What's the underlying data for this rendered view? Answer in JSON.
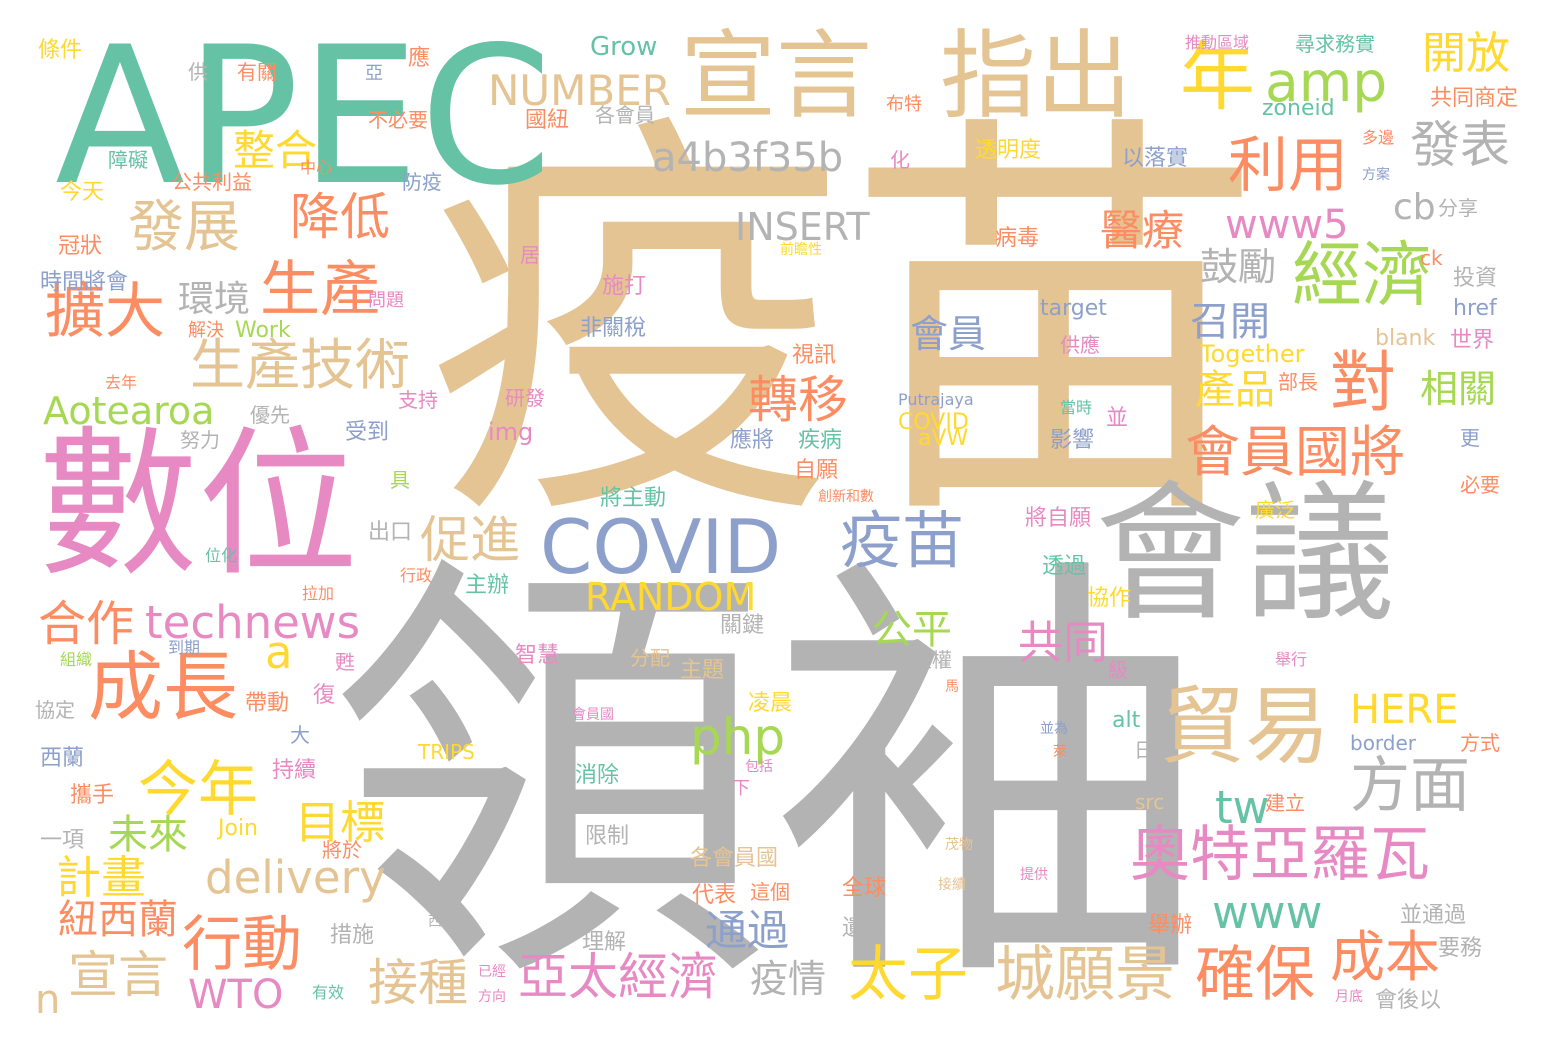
{
  "palette": {
    "gray": "#b3b3b3",
    "tan": "#e5c494",
    "green": "#66c2a5",
    "pink": "#e78ac3",
    "orange": "#fc8d62",
    "yellow": "#ffd92f",
    "blue": "#8da0cb",
    "lime": "#a6d854"
  },
  "words": [
    {
      "text": "疫苗",
      "color": "tan"
    },
    {
      "text": "領袖",
      "color": "gray"
    },
    {
      "text": "APEC",
      "color": "green"
    },
    {
      "text": "數位",
      "color": "pink"
    },
    {
      "text": "會議",
      "color": "gray"
    },
    {
      "text": "宣言",
      "color": "tan"
    },
    {
      "text": "指出",
      "color": "tan"
    },
    {
      "text": "年",
      "color": "yellow"
    },
    {
      "text": "amp",
      "color": "lime"
    },
    {
      "text": "開放",
      "color": "yellow"
    },
    {
      "text": "NUMBER",
      "color": "tan"
    },
    {
      "text": "a4b3f35b",
      "color": "gray"
    },
    {
      "text": "利用",
      "color": "orange"
    },
    {
      "text": "發表",
      "color": "gray"
    },
    {
      "text": "整合",
      "color": "yellow"
    },
    {
      "text": "發展",
      "color": "tan"
    },
    {
      "text": "降低",
      "color": "orange"
    },
    {
      "text": "INSERT",
      "color": "gray"
    },
    {
      "text": "cb",
      "color": "gray"
    },
    {
      "text": "經濟",
      "color": "lime"
    },
    {
      "text": "www5",
      "color": "pink"
    },
    {
      "text": "醫療",
      "color": "orange"
    },
    {
      "text": "擴大",
      "color": "orange"
    },
    {
      "text": "生產",
      "color": "orange"
    },
    {
      "text": "環境",
      "color": "gray"
    },
    {
      "text": "鼓勵",
      "color": "gray"
    },
    {
      "text": "會員",
      "color": "blue"
    },
    {
      "text": "target",
      "color": "blue"
    },
    {
      "text": "生產技術",
      "color": "tan"
    },
    {
      "text": "召開",
      "color": "blue"
    },
    {
      "text": "對",
      "color": "orange"
    },
    {
      "text": "相關",
      "color": "lime"
    },
    {
      "text": "轉移",
      "color": "orange"
    },
    {
      "text": "產品",
      "color": "yellow"
    },
    {
      "text": "Aotearoa",
      "color": "lime"
    },
    {
      "text": "會員國將",
      "color": "orange"
    },
    {
      "text": "COVID",
      "color": "blue"
    },
    {
      "text": "疫苗",
      "color": "blue"
    },
    {
      "text": "促進",
      "color": "tan"
    },
    {
      "text": "RANDOM",
      "color": "yellow"
    },
    {
      "text": "合作",
      "color": "orange"
    },
    {
      "text": "technews",
      "color": "pink"
    },
    {
      "text": "成長",
      "color": "orange"
    },
    {
      "text": "公平",
      "color": "lime"
    },
    {
      "text": "共同",
      "color": "pink"
    },
    {
      "text": "貿易",
      "color": "tan"
    },
    {
      "text": "今年",
      "color": "yellow"
    },
    {
      "text": "php",
      "color": "lime"
    },
    {
      "text": "HERE",
      "color": "yellow"
    },
    {
      "text": "方面",
      "color": "gray"
    },
    {
      "text": "tw",
      "color": "green"
    },
    {
      "text": "未來",
      "color": "lime"
    },
    {
      "text": "目標",
      "color": "yellow"
    },
    {
      "text": "奧特亞羅瓦",
      "color": "pink"
    },
    {
      "text": "delivery",
      "color": "tan"
    },
    {
      "text": "計畫",
      "color": "yellow"
    },
    {
      "text": "www",
      "color": "green"
    },
    {
      "text": "行動",
      "color": "orange"
    },
    {
      "text": "宣言",
      "color": "tan"
    },
    {
      "text": "WTO",
      "color": "pink"
    },
    {
      "text": "接種",
      "color": "tan"
    },
    {
      "text": "亞太經濟",
      "color": "pink"
    },
    {
      "text": "太子",
      "color": "yellow"
    },
    {
      "text": "城願景",
      "color": "tan"
    },
    {
      "text": "確保",
      "color": "orange"
    },
    {
      "text": "成本",
      "color": "orange"
    },
    {
      "text": "疫情",
      "color": "gray"
    },
    {
      "text": "通過",
      "color": "blue"
    },
    {
      "text": "紐西蘭",
      "color": "orange"
    },
    {
      "text": "n",
      "color": "tan"
    },
    {
      "text": "a",
      "color": "yellow"
    },
    {
      "text": "Grow",
      "color": "green"
    },
    {
      "text": "條件",
      "color": "yellow"
    },
    {
      "text": "供",
      "color": "gray"
    },
    {
      "text": "有關",
      "color": "orange"
    },
    {
      "text": "亞",
      "color": "blue"
    },
    {
      "text": "應",
      "color": "orange"
    },
    {
      "text": "國紐",
      "color": "orange"
    },
    {
      "text": "各會員",
      "color": "gray"
    },
    {
      "text": "推動區域",
      "color": "pink"
    },
    {
      "text": "尋求務實",
      "color": "green"
    },
    {
      "text": "共同商定",
      "color": "orange"
    },
    {
      "text": "zoneid",
      "color": "green"
    },
    {
      "text": "布特",
      "color": "orange"
    },
    {
      "text": "不必要",
      "color": "orange"
    },
    {
      "text": "障礙",
      "color": "green"
    },
    {
      "text": "中心",
      "color": "orange"
    },
    {
      "text": "化",
      "color": "pink"
    },
    {
      "text": "透明度",
      "color": "yellow"
    },
    {
      "text": "以落實",
      "color": "blue"
    },
    {
      "text": "多邊",
      "color": "orange"
    },
    {
      "text": "方案",
      "color": "blue"
    },
    {
      "text": "今天",
      "color": "yellow"
    },
    {
      "text": "公共利益",
      "color": "orange"
    },
    {
      "text": "防疫",
      "color": "blue"
    },
    {
      "text": "分享",
      "color": "gray"
    },
    {
      "text": "冠狀",
      "color": "orange"
    },
    {
      "text": "ck",
      "color": "orange"
    },
    {
      "text": "病毒",
      "color": "orange"
    },
    {
      "text": "居",
      "color": "pink"
    },
    {
      "text": "前瞻性",
      "color": "yellow"
    },
    {
      "text": "時間將會",
      "color": "blue"
    },
    {
      "text": "問題",
      "color": "pink"
    },
    {
      "text": "施打",
      "color": "pink"
    },
    {
      "text": "投資",
      "color": "gray"
    },
    {
      "text": "href",
      "color": "blue"
    },
    {
      "text": "解決",
      "color": "orange"
    },
    {
      "text": "Work",
      "color": "lime"
    },
    {
      "text": "非關稅",
      "color": "blue"
    },
    {
      "text": "供應",
      "color": "pink"
    },
    {
      "text": "blank",
      "color": "tan"
    },
    {
      "text": "世界",
      "color": "pink"
    },
    {
      "text": "Together",
      "color": "yellow"
    },
    {
      "text": "部長",
      "color": "orange"
    },
    {
      "text": "去年",
      "color": "orange"
    },
    {
      "text": "視訊",
      "color": "orange"
    },
    {
      "text": "支持",
      "color": "pink"
    },
    {
      "text": "研發",
      "color": "pink"
    },
    {
      "text": "Putrajaya",
      "color": "blue"
    },
    {
      "text": "當時",
      "color": "green"
    },
    {
      "text": "優先",
      "color": "gray"
    },
    {
      "text": "受到",
      "color": "blue"
    },
    {
      "text": "img",
      "color": "pink"
    },
    {
      "text": "COVID",
      "color": "yellow"
    },
    {
      "text": "aVW",
      "color": "yellow"
    },
    {
      "text": "並",
      "color": "pink"
    },
    {
      "text": "努力",
      "color": "gray"
    },
    {
      "text": "應將",
      "color": "blue"
    },
    {
      "text": "疾病",
      "color": "green"
    },
    {
      "text": "影響",
      "color": "blue"
    },
    {
      "text": "更",
      "color": "blue"
    },
    {
      "text": "具",
      "color": "lime"
    },
    {
      "text": "自願",
      "color": "orange"
    },
    {
      "text": "必要",
      "color": "orange"
    },
    {
      "text": "將主動",
      "color": "green"
    },
    {
      "text": "創新和數",
      "color": "orange"
    },
    {
      "text": "出口",
      "color": "gray"
    },
    {
      "text": "將自願",
      "color": "pink"
    },
    {
      "text": "廣泛",
      "color": "yellow"
    },
    {
      "text": "位化",
      "color": "green"
    },
    {
      "text": "行政",
      "color": "orange"
    },
    {
      "text": "主辦",
      "color": "green"
    },
    {
      "text": "透過",
      "color": "green"
    },
    {
      "text": "拉加",
      "color": "orange"
    },
    {
      "text": "協作",
      "color": "yellow"
    },
    {
      "text": "到期",
      "color": "blue"
    },
    {
      "text": "關鍵",
      "color": "gray"
    },
    {
      "text": "組織",
      "color": "lime"
    },
    {
      "text": "甦",
      "color": "pink"
    },
    {
      "text": "智慧",
      "color": "pink"
    },
    {
      "text": "分配",
      "color": "tan"
    },
    {
      "text": "主題",
      "color": "tan"
    },
    {
      "text": "財產權",
      "color": "gray"
    },
    {
      "text": "級",
      "color": "pink"
    },
    {
      "text": "舉行",
      "color": "pink"
    },
    {
      "text": "協定",
      "color": "gray"
    },
    {
      "text": "帶動",
      "color": "orange"
    },
    {
      "text": "復",
      "color": "pink"
    },
    {
      "text": "會員國",
      "color": "pink"
    },
    {
      "text": "凌晨",
      "color": "yellow"
    },
    {
      "text": "馬",
      "color": "orange"
    },
    {
      "text": "alt",
      "color": "green"
    },
    {
      "text": "並為",
      "color": "blue"
    },
    {
      "text": "大",
      "color": "blue"
    },
    {
      "text": "西蘭",
      "color": "blue"
    },
    {
      "text": "TRIPS",
      "color": "yellow"
    },
    {
      "text": "萊",
      "color": "orange"
    },
    {
      "text": "border",
      "color": "blue"
    },
    {
      "text": "方式",
      "color": "orange"
    },
    {
      "text": "日",
      "color": "gray"
    },
    {
      "text": "持續",
      "color": "pink"
    },
    {
      "text": "消除",
      "color": "green"
    },
    {
      "text": "包括",
      "color": "pink"
    },
    {
      "text": "攜手",
      "color": "orange"
    },
    {
      "text": "下",
      "color": "pink"
    },
    {
      "text": "src",
      "color": "tan"
    },
    {
      "text": "建立",
      "color": "orange"
    },
    {
      "text": "Join",
      "color": "yellow"
    },
    {
      "text": "限制",
      "color": "gray"
    },
    {
      "text": "一項",
      "color": "gray"
    },
    {
      "text": "將於",
      "color": "orange"
    },
    {
      "text": "茂物",
      "color": "tan"
    },
    {
      "text": "各會員國",
      "color": "tan"
    },
    {
      "text": "提供",
      "color": "pink"
    },
    {
      "text": "代表",
      "color": "orange"
    },
    {
      "text": "這個",
      "color": "orange"
    },
    {
      "text": "全球",
      "color": "orange"
    },
    {
      "text": "接續",
      "color": "tan"
    },
    {
      "text": "並通過",
      "color": "gray"
    },
    {
      "text": "舉辦",
      "color": "orange"
    },
    {
      "text": "西亞",
      "color": "gray"
    },
    {
      "text": "措施",
      "color": "gray"
    },
    {
      "text": "理解",
      "color": "gray"
    },
    {
      "text": "遺境",
      "color": "gray"
    },
    {
      "text": "要務",
      "color": "gray"
    },
    {
      "text": "已經",
      "color": "pink"
    },
    {
      "text": "有效",
      "color": "green"
    },
    {
      "text": "方向",
      "color": "pink"
    },
    {
      "text": "月底",
      "color": "pink"
    },
    {
      "text": "會後以",
      "color": "gray"
    }
  ]
}
